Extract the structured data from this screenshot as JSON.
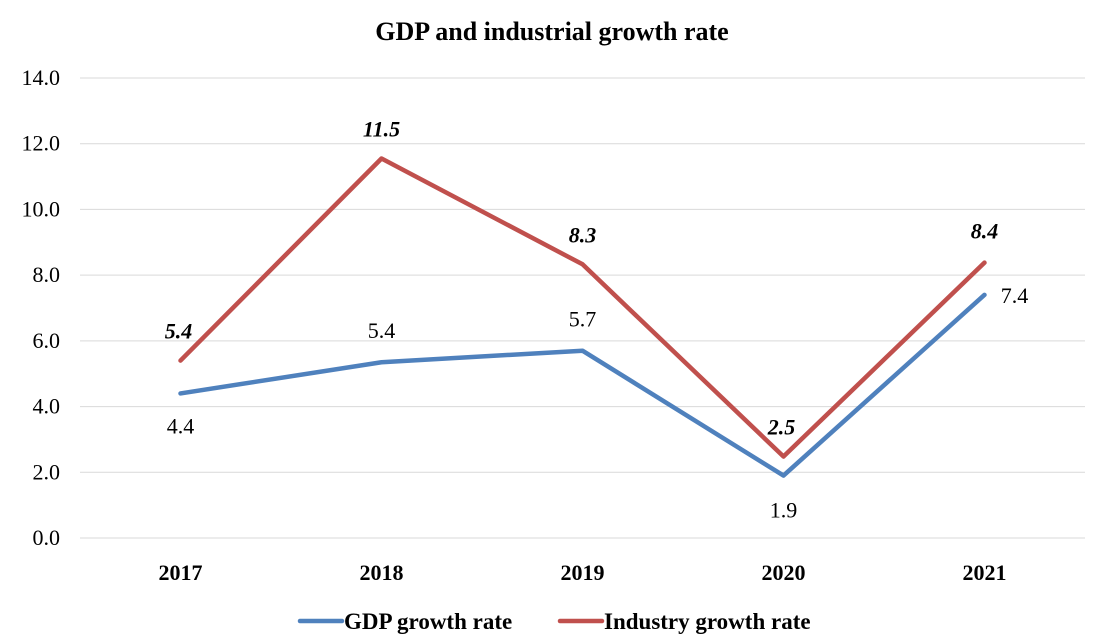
{
  "chart_data": {
    "type": "line",
    "title": "GDP and industrial growth rate",
    "categories": [
      "2017",
      "2018",
      "2019",
      "2020",
      "2021"
    ],
    "series": [
      {
        "name": "GDP growth rate",
        "color": "#4F81BD",
        "values": [
          4.4,
          5.35,
          5.7,
          1.9,
          7.4
        ],
        "labels": [
          "4.4",
          "5.4",
          "5.7",
          "1.9",
          "7.4"
        ],
        "label_style": "normal"
      },
      {
        "name": "Industry growth rate",
        "color": "#C0504D",
        "values": [
          5.4,
          11.55,
          8.33,
          2.48,
          8.38
        ],
        "labels": [
          "5.4",
          "11.5",
          "8.3",
          "2.5",
          "8.4"
        ],
        "label_style": "bold-italic"
      }
    ],
    "ylim": [
      0,
      14
    ],
    "yticks": [
      "0.0",
      "2.0",
      "4.0",
      "6.0",
      "8.0",
      "10.0",
      "12.0",
      "14.0"
    ],
    "grid": true,
    "legend_position": "bottom"
  }
}
